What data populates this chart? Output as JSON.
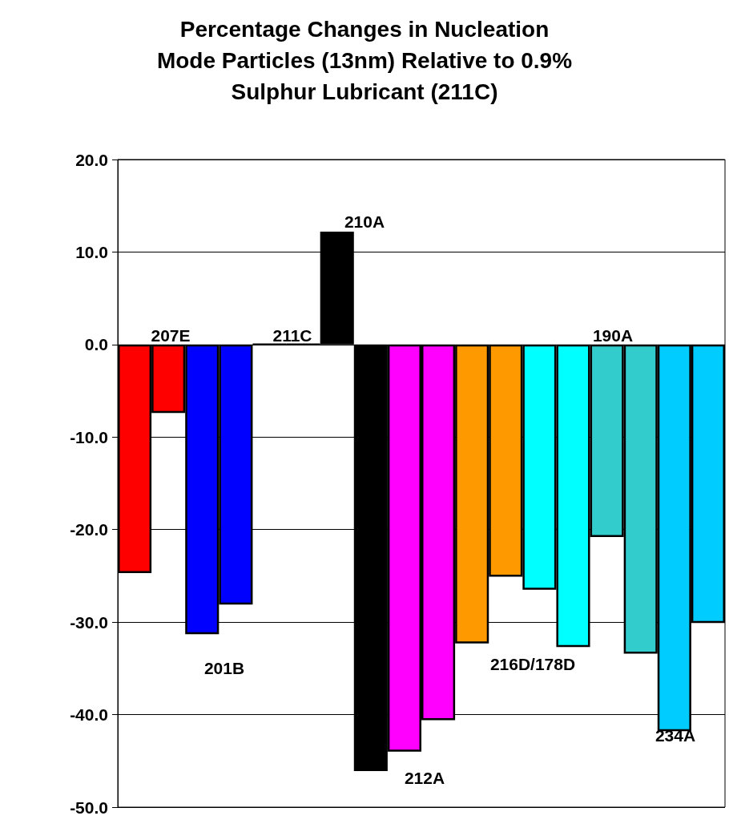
{
  "chart_data": {
    "type": "bar",
    "title": "Percentage Changes in Nucleation\nMode Particles (13nm) Relative to 0.9%\nSulphur Lubricant (211C)",
    "categories": [
      null,
      null,
      null,
      null,
      null,
      null,
      null,
      null,
      null,
      null,
      null,
      null,
      null,
      null,
      null,
      null,
      null,
      null
    ],
    "values": [
      -24.7,
      -7.4,
      -31.3,
      -28.1,
      0,
      0,
      12.2,
      -46.1,
      -44.0,
      -40.6,
      -32.3,
      -25.1,
      -26.5,
      -32.7,
      -20.8,
      -33.4,
      -41.8,
      -30.1
    ],
    "colors": [
      "#ff0000",
      "#ff0000",
      "#0000ff",
      "#0000ff",
      "#000000",
      "#000000",
      "#000000",
      "#000000",
      "#ff00ff",
      "#ff00ff",
      "#ff9900",
      "#ff9900",
      "#00ffff",
      "#00ffff",
      "#33cccc",
      "#33cccc",
      "#00ccff",
      "#00ccff"
    ],
    "ylim": [
      -50,
      20
    ],
    "yticks": [
      {
        "value": -50,
        "label": "-50.0"
      },
      {
        "value": -40,
        "label": "-40.0"
      },
      {
        "value": -30,
        "label": "-30.0"
      },
      {
        "value": -20,
        "label": "-20.0"
      },
      {
        "value": -10,
        "label": "-10.0"
      },
      {
        "value": 0,
        "label": "0.0"
      },
      {
        "value": 10,
        "label": "10.0"
      },
      {
        "value": 20,
        "label": "20.0"
      }
    ],
    "annotations": [
      "207E",
      "201B",
      "211C",
      "210A",
      "212A",
      "216D/178D",
      "190A",
      "234A"
    ],
    "grid": "y",
    "tick_labels": "y"
  }
}
